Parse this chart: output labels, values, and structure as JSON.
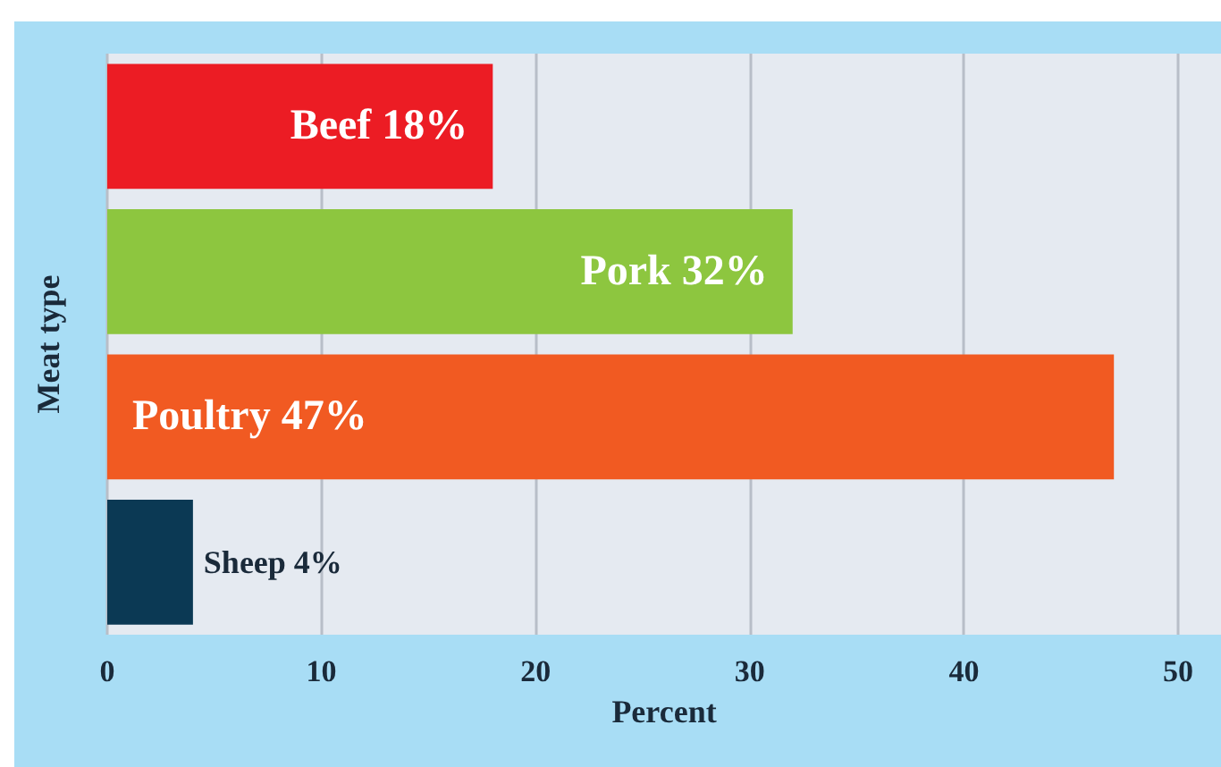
{
  "chart_data": {
    "type": "bar",
    "orientation": "horizontal",
    "xlabel": "Percent",
    "ylabel": "Meat type",
    "categories": [
      null,
      null,
      null,
      null
    ],
    "values": [
      18,
      32,
      47,
      4
    ],
    "colors": [
      "#ec1c24",
      "#8dc63f",
      "#f15a22",
      "#0b3954"
    ],
    "value_labels": [
      "Beef 18%",
      "Pork 32%",
      "Poultry 47%",
      "Sheep 4%"
    ],
    "xlim": [
      0,
      52
    ],
    "xticks": [
      0,
      10,
      20,
      30,
      40,
      50
    ],
    "grid": "x"
  }
}
